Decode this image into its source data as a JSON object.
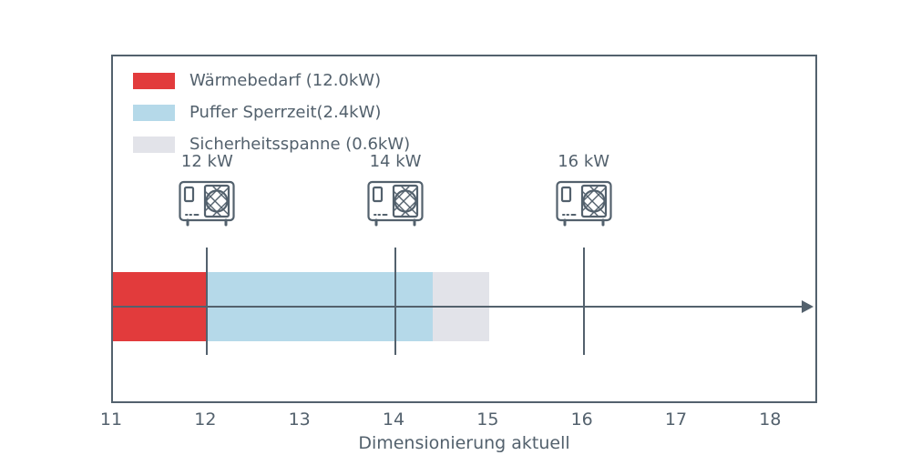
{
  "chart_data": {
    "type": "bar",
    "orientation": "horizontal-stacked",
    "title": "",
    "xlabel": "Dimensionierung aktuell",
    "x_axis": {
      "range": [
        11,
        18.5
      ],
      "ticks": [
        11,
        12,
        13,
        14,
        15,
        16,
        17,
        18
      ]
    },
    "segments": [
      {
        "name": "Wärmebedarf (12.0kW)",
        "value_kw": 12.0,
        "start": 11,
        "end": 12,
        "color": "#e23b3c"
      },
      {
        "name": "Puffer Sperrzeit(2.4kW)",
        "value_kw": 2.4,
        "start": 12,
        "end": 14.4,
        "color": "#b5d9e9"
      },
      {
        "name": "Sicherheitsspanne (0.6kW)",
        "value_kw": 0.6,
        "start": 14.4,
        "end": 15,
        "color": "#e2e3e9"
      }
    ],
    "markers": [
      {
        "label": "12 kW",
        "x": 12,
        "icon": "heat-pump-icon"
      },
      {
        "label": "14 kW",
        "x": 14,
        "icon": "heat-pump-icon"
      },
      {
        "label": "16 kW",
        "x": 16,
        "icon": "heat-pump-icon"
      }
    ],
    "legend_position": "upper-left",
    "grid": false,
    "colors": {
      "axis": "#53616d",
      "background": "#ffffff"
    }
  }
}
